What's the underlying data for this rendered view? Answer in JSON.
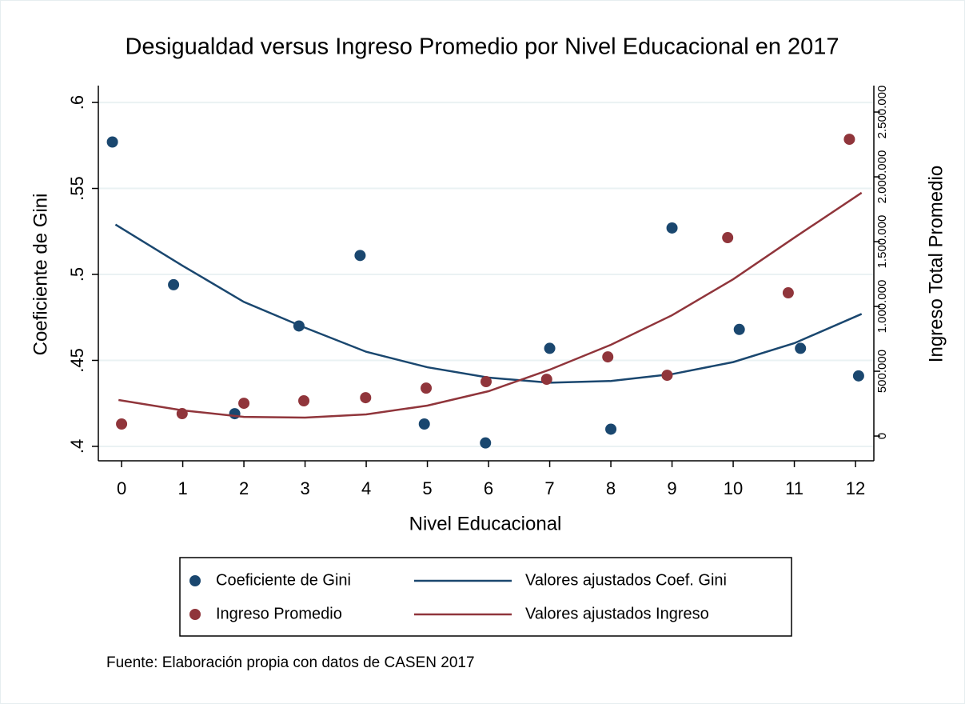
{
  "chart_data": {
    "type": "scatter",
    "title": "Desigualdad versus Ingreso Promedio por Nivel Educacional en 2017",
    "xlabel": "Nivel Educacional",
    "ylabel": "Coeficiente de Gini",
    "y2label": "Ingreso Total Promedio",
    "note": "Fuente: Elaboración propia con datos de CASEN 2017",
    "xlim": [
      -0.38,
      12.3
    ],
    "xticks": [
      0,
      1,
      2,
      3,
      4,
      5,
      6,
      7,
      8,
      9,
      10,
      11,
      12
    ],
    "ylim": [
      0.3916,
      0.6098
    ],
    "yticks": [
      {
        "value": 0.4,
        "label": ".4"
      },
      {
        "value": 0.45,
        "label": ".45"
      },
      {
        "value": 0.5,
        "label": ".5"
      },
      {
        "value": 0.55,
        "label": ".55"
      },
      {
        "value": 0.6,
        "label": ".6"
      }
    ],
    "y2lim": [
      -191000,
      2704000
    ],
    "y2ticks": [
      0,
      {
        "value": 500000,
        "label": "500.000"
      },
      {
        "value": 1000000,
        "label": "1.000.000"
      },
      {
        "value": 1500000,
        "label": "1.500.000"
      },
      {
        "value": 2000000,
        "label": "2.000.000"
      },
      {
        "value": 2500000,
        "label": "2.500.000"
      }
    ],
    "grid": true,
    "legend": "bottom",
    "series": [
      {
        "name": "Coeficiente de Gini",
        "type": "scatter",
        "color": "#1a476f",
        "x": [
          -0.15,
          0.85,
          1.85,
          2.9,
          3.9,
          4.95,
          5.95,
          7,
          8,
          9,
          10.1,
          11.1,
          12.05
        ],
        "values": [
          0.577,
          0.494,
          0.419,
          0.47,
          0.511,
          0.413,
          0.402,
          0.457,
          0.41,
          0.527,
          0.468,
          0.457,
          0.441
        ]
      },
      {
        "name": "Valores ajustados Coef. Gini",
        "type": "line",
        "color": "#1a476f",
        "x": [
          -0.1,
          1,
          2,
          3,
          4,
          5,
          6,
          7,
          8,
          9,
          10,
          11,
          12.1
        ],
        "values": [
          0.529,
          0.505,
          0.484,
          0.469,
          0.455,
          0.446,
          0.44,
          0.437,
          0.438,
          0.442,
          0.449,
          0.46,
          0.477
        ]
      },
      {
        "name": "Ingreso Promedio",
        "type": "scatter",
        "color": "#90353b",
        "axis": "y2",
        "x": [
          0,
          0.99,
          2,
          2.98,
          3.99,
          4.98,
          5.96,
          6.95,
          7.95,
          8.92,
          9.91,
          10.9,
          11.9
        ],
        "values": [
          93000,
          173000,
          253000,
          272000,
          296000,
          370000,
          420000,
          438000,
          611000,
          469000,
          1531000,
          1105000,
          2290000
        ]
      },
      {
        "name": "Valores ajustados Ingreso",
        "type": "line",
        "color": "#90353b",
        "axis": "y2",
        "x": [
          -0.05,
          1,
          2,
          3,
          4,
          5,
          6,
          7,
          8,
          9,
          10,
          11,
          12.1
        ],
        "values": [
          278000,
          198000,
          148000,
          142000,
          167000,
          235000,
          346000,
          512000,
          704000,
          932000,
          1210000,
          1531000,
          1877000
        ]
      }
    ]
  }
}
